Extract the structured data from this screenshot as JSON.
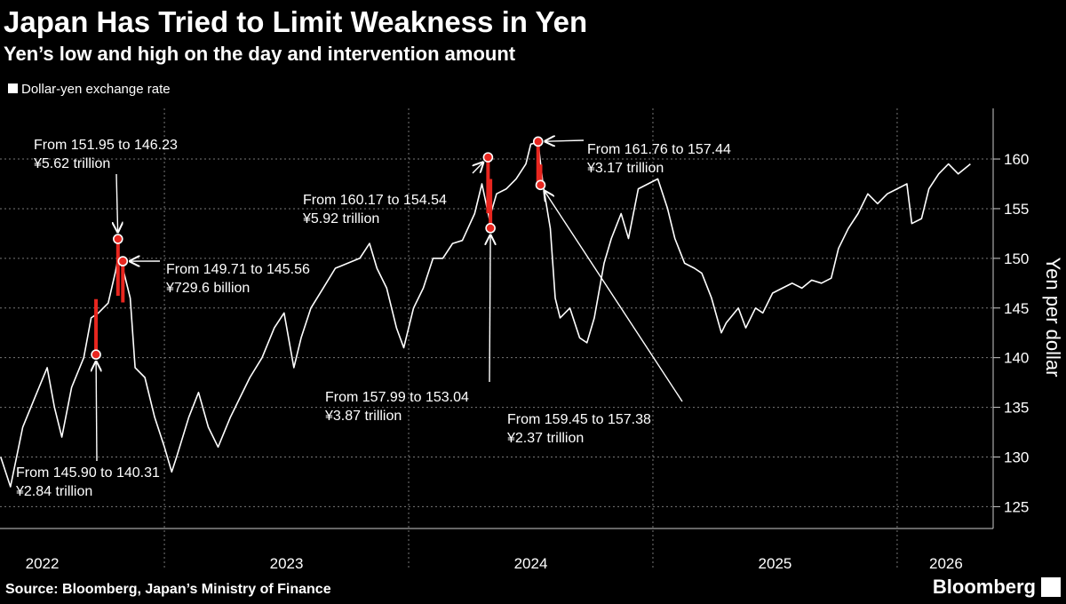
{
  "chart_data": {
    "type": "line",
    "title": "Japan Has Tried to Limit Weakness in Yen",
    "subtitle": "Yen’s low and high on the day and intervention amount",
    "y_axis_label": "Yen per dollar",
    "source": "Source: Bloomberg, Japan’s Ministry of Finance",
    "brand": "Bloomberg",
    "xlim": [
      2022.327,
      2026.393
    ],
    "xticks": [
      {
        "value": 2022.5,
        "label": "2022"
      },
      {
        "value": 2023.5,
        "label": "2023"
      },
      {
        "value": 2024.5,
        "label": "2024"
      },
      {
        "value": 2025.5,
        "label": "2025"
      },
      {
        "value": 2026.2,
        "label": "2026"
      }
    ],
    "xgrid": [
      2023,
      2024,
      2025,
      2026
    ],
    "ylim": [
      122.8,
      165.1
    ],
    "yticks": [
      125,
      130,
      135,
      140,
      145,
      150,
      155,
      160
    ],
    "grid": true,
    "x": [
      2022.33,
      2022.37,
      2022.42,
      2022.47,
      2022.52,
      2022.55,
      2022.58,
      2022.62,
      2022.67,
      2022.7,
      2022.73,
      2022.77,
      2022.8,
      2022.81,
      2022.83,
      2022.86,
      2022.88,
      2022.92,
      2022.96,
      2023.0,
      2023.03,
      2023.05,
      2023.1,
      2023.14,
      2023.18,
      2023.22,
      2023.27,
      2023.31,
      2023.35,
      2023.4,
      2023.45,
      2023.49,
      2023.53,
      2023.56,
      2023.6,
      2023.65,
      2023.7,
      2023.75,
      2023.8,
      2023.84,
      2023.87,
      2023.91,
      2023.95,
      2023.98,
      2024.02,
      2024.06,
      2024.1,
      2024.14,
      2024.18,
      2024.22,
      2024.27,
      2024.3,
      2024.33,
      2024.36,
      2024.4,
      2024.44,
      2024.48,
      2024.5,
      2024.53,
      2024.55,
      2024.58,
      2024.6,
      2024.62,
      2024.66,
      2024.7,
      2024.73,
      2024.76,
      2024.8,
      2024.83,
      2024.87,
      2024.9,
      2024.94,
      2024.98,
      2025.02,
      2025.06,
      2025.09,
      2025.13,
      2025.17,
      2025.2,
      2025.24,
      2025.28,
      2025.3,
      2025.35,
      2025.38,
      2025.42,
      2025.45,
      2025.49,
      2025.53,
      2025.57,
      2025.61,
      2025.65,
      2025.69,
      2025.73,
      2025.76,
      2025.8,
      2025.84,
      2025.88,
      2025.92,
      2025.96,
      2026.0,
      2026.04,
      2026.06,
      2026.1,
      2026.13,
      2026.17,
      2026.21,
      2026.25,
      2026.3
    ],
    "series": [
      {
        "name": "Dollar-yen exchange rate",
        "color": "#ffffff",
        "values": [
          130,
          127,
          133,
          136,
          139,
          135,
          132,
          137,
          140,
          144,
          144.5,
          145.5,
          148.7,
          150,
          149,
          146,
          139,
          138,
          134,
          131,
          128.5,
          130,
          134,
          136.5,
          133,
          131,
          134,
          136,
          138,
          140,
          143,
          144.5,
          139,
          142,
          145,
          147,
          149,
          149.5,
          150,
          151.5,
          149,
          147,
          143,
          141,
          145,
          147,
          150,
          150,
          151.5,
          151.8,
          154.5,
          157.5,
          154,
          156.5,
          157,
          158,
          159.5,
          161.5,
          161.7,
          157.5,
          153,
          146,
          144,
          145,
          142,
          141.5,
          144,
          149.5,
          152,
          154.5,
          152,
          157,
          157.5,
          158,
          155,
          152,
          149.5,
          149,
          148.5,
          146,
          142.5,
          143.5,
          145,
          143,
          145,
          144.5,
          146.5,
          147,
          147.5,
          147,
          147.8,
          147.5,
          148,
          151,
          153,
          154.5,
          156.5,
          155.5,
          156.5,
          157,
          157.5,
          153.5,
          154,
          157,
          158.5,
          159.5,
          158.5,
          159.5
        ]
      }
    ],
    "intervention_color": "#e8261f",
    "interventions": [
      {
        "x": 2022.72,
        "high": 145.9,
        "low": 140.31,
        "label": "From 145.90 to 140.31",
        "amount": "¥2.84 trillion"
      },
      {
        "x": 2022.81,
        "high": 151.95,
        "low": 146.23,
        "label": "From 151.95 to 146.23",
        "amount": "¥5.62 trillion"
      },
      {
        "x": 2022.83,
        "high": 149.71,
        "low": 145.56,
        "label": "From 149.71 to 145.56",
        "amount": "¥729.6 billion"
      },
      {
        "x": 2024.325,
        "high": 160.17,
        "low": 154.54,
        "label": "From 160.17 to 154.54",
        "amount": "¥5.92 trillion"
      },
      {
        "x": 2024.335,
        "high": 157.99,
        "low": 153.04,
        "label": "From 157.99 to 153.04",
        "amount": "¥3.87 trillion"
      },
      {
        "x": 2024.53,
        "high": 161.76,
        "low": 157.44,
        "label": "From 161.76 to 157.44",
        "amount": "¥3.17 trillion"
      },
      {
        "x": 2024.54,
        "high": 159.45,
        "low": 157.38,
        "label": "From 159.45 to 157.38",
        "amount": "¥2.37 trillion"
      }
    ]
  }
}
